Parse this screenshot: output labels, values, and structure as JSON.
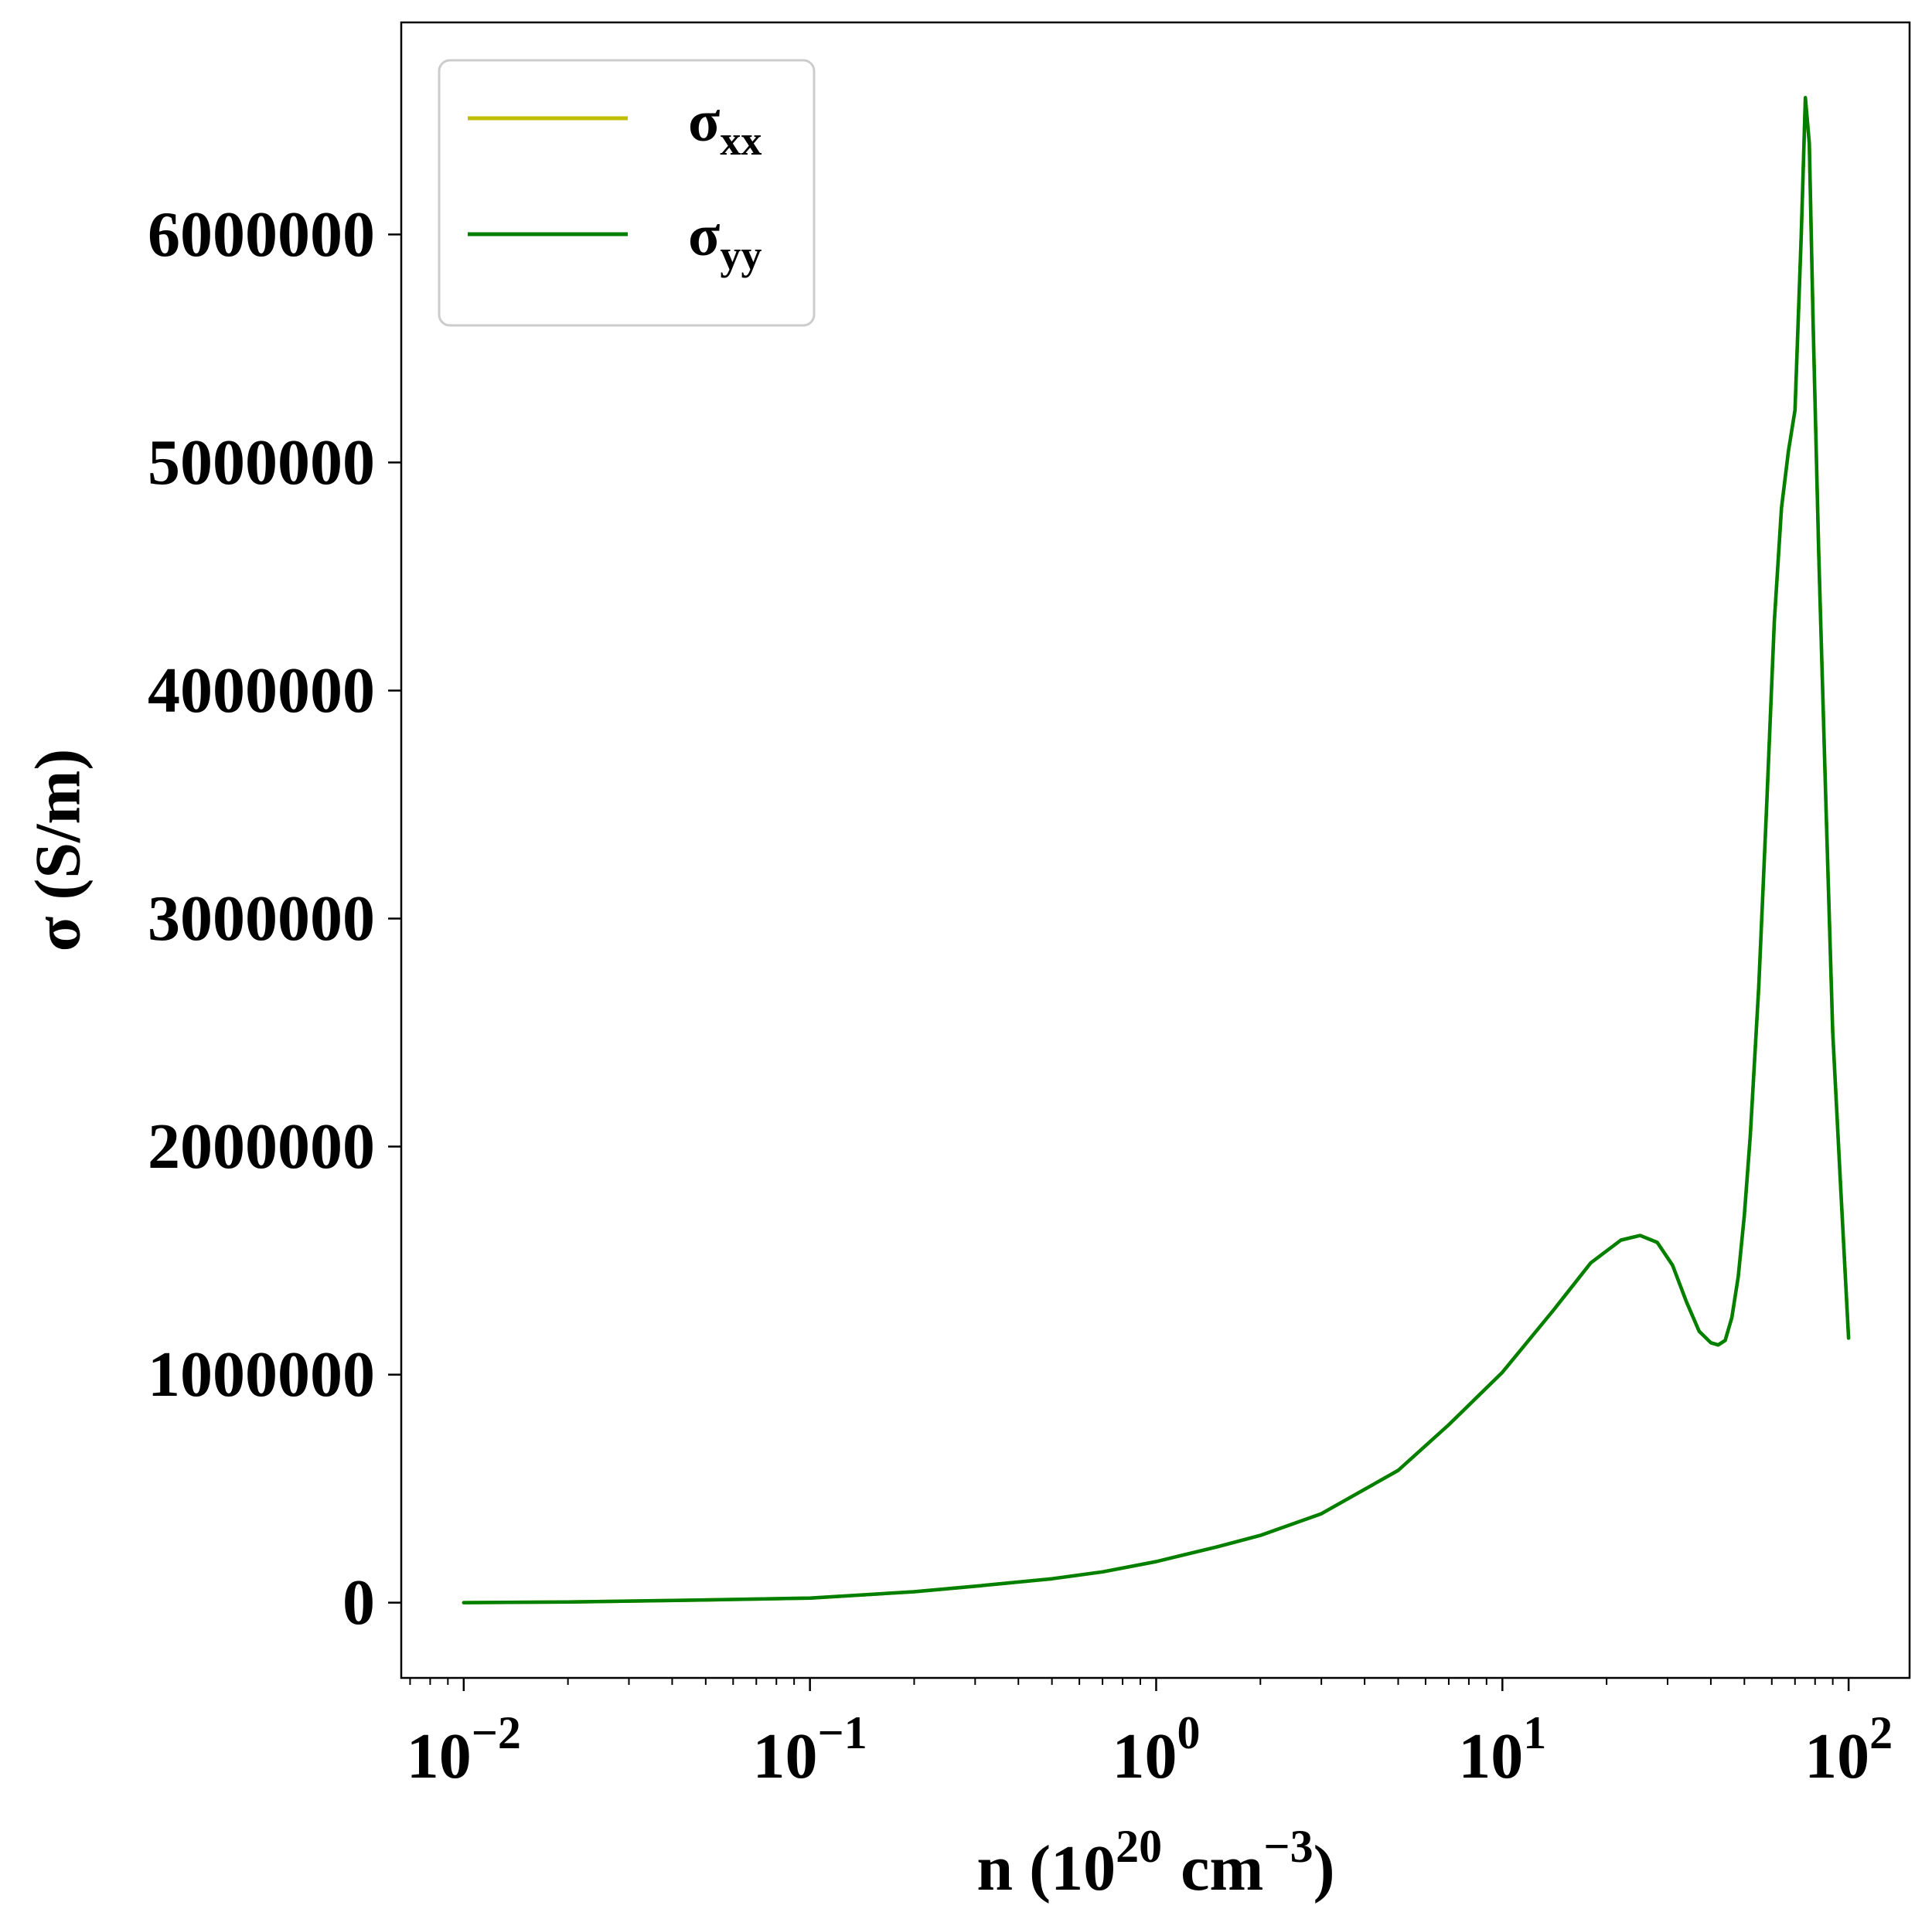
{
  "chart_data": {
    "type": "line",
    "xlabel": "n (10",
    "xlabel_exponent": "20",
    "xlabel_unit": "cm",
    "xlabel_unit_exponent": "−3",
    "xlabel_close": ")",
    "ylabel": "σ (S/m)",
    "x_scale": "log",
    "xlim": [
      0.0066,
      150
    ],
    "ylim": [
      -330000,
      6930000
    ],
    "grid": false,
    "legend_position": "top-left",
    "x_ticks": [
      {
        "value": 0.01,
        "base": "10",
        "exp": "−2"
      },
      {
        "value": 0.1,
        "base": "10",
        "exp": "−1"
      },
      {
        "value": 1,
        "base": "10",
        "exp": "0"
      },
      {
        "value": 10,
        "base": "10",
        "exp": "1"
      },
      {
        "value": 100,
        "base": "10",
        "exp": "2"
      }
    ],
    "y_ticks": [
      {
        "value": 0,
        "label": "0"
      },
      {
        "value": 1000000,
        "label": "1000000"
      },
      {
        "value": 2000000,
        "label": "2000000"
      },
      {
        "value": 3000000,
        "label": "3000000"
      },
      {
        "value": 4000000,
        "label": "4000000"
      },
      {
        "value": 5000000,
        "label": "5000000"
      },
      {
        "value": 6000000,
        "label": "6000000"
      }
    ],
    "series": [
      {
        "name": "σ",
        "subscript": "xx",
        "color": "#bfbf00",
        "x": [
          0.01,
          0.02,
          0.05,
          0.1,
          0.2,
          0.3,
          0.5,
          0.7,
          1.0,
          1.5,
          2.0,
          3.0,
          5.0,
          7.0,
          10.0,
          14.0,
          18.0,
          22.0,
          25.0,
          28.0,
          31.0,
          34.0,
          37.0,
          40.0,
          42.0,
          44.0,
          46.0,
          48.0,
          50.0,
          52.0,
          55.0,
          58.0,
          61.0,
          64.0,
          67.0,
          70.0,
          73.0,
          75.0,
          77.0,
          79.0,
          82.0,
          86.0,
          90.0,
          95.0,
          100.0
        ],
        "values": [
          0,
          3000,
          12000,
          20000,
          48000,
          72000,
          105000,
          135000,
          180000,
          245000,
          295000,
          390000,
          580000,
          780000,
          1010000,
          1280000,
          1490000,
          1590000,
          1610000,
          1580000,
          1480000,
          1320000,
          1190000,
          1140000,
          1130000,
          1150000,
          1250000,
          1430000,
          1700000,
          2050000,
          2700000,
          3500000,
          4300000,
          4800000,
          5050000,
          5230000,
          6000000,
          6600000,
          6400000,
          5600000,
          4600000,
          3500000,
          2500000,
          1800000,
          1160000
        ]
      },
      {
        "name": "σ",
        "subscript": "yy",
        "color": "#007f00",
        "x": [
          0.01,
          0.02,
          0.05,
          0.1,
          0.2,
          0.3,
          0.5,
          0.7,
          1.0,
          1.5,
          2.0,
          3.0,
          5.0,
          7.0,
          10.0,
          14.0,
          18.0,
          22.0,
          25.0,
          28.0,
          31.0,
          34.0,
          37.0,
          40.0,
          42.0,
          44.0,
          46.0,
          48.0,
          50.0,
          52.0,
          55.0,
          58.0,
          61.0,
          64.0,
          67.0,
          70.0,
          73.0,
          75.0,
          77.0,
          79.0,
          82.0,
          86.0,
          90.0,
          95.0,
          100.0
        ],
        "values": [
          0,
          3000,
          12000,
          20000,
          48000,
          72000,
          105000,
          135000,
          180000,
          245000,
          295000,
          390000,
          580000,
          780000,
          1010000,
          1280000,
          1490000,
          1590000,
          1610000,
          1580000,
          1480000,
          1320000,
          1190000,
          1140000,
          1130000,
          1150000,
          1250000,
          1430000,
          1700000,
          2050000,
          2700000,
          3500000,
          4300000,
          4800000,
          5050000,
          5230000,
          6000000,
          6600000,
          6400000,
          5600000,
          4600000,
          3500000,
          2500000,
          1800000,
          1160000
        ]
      }
    ]
  }
}
